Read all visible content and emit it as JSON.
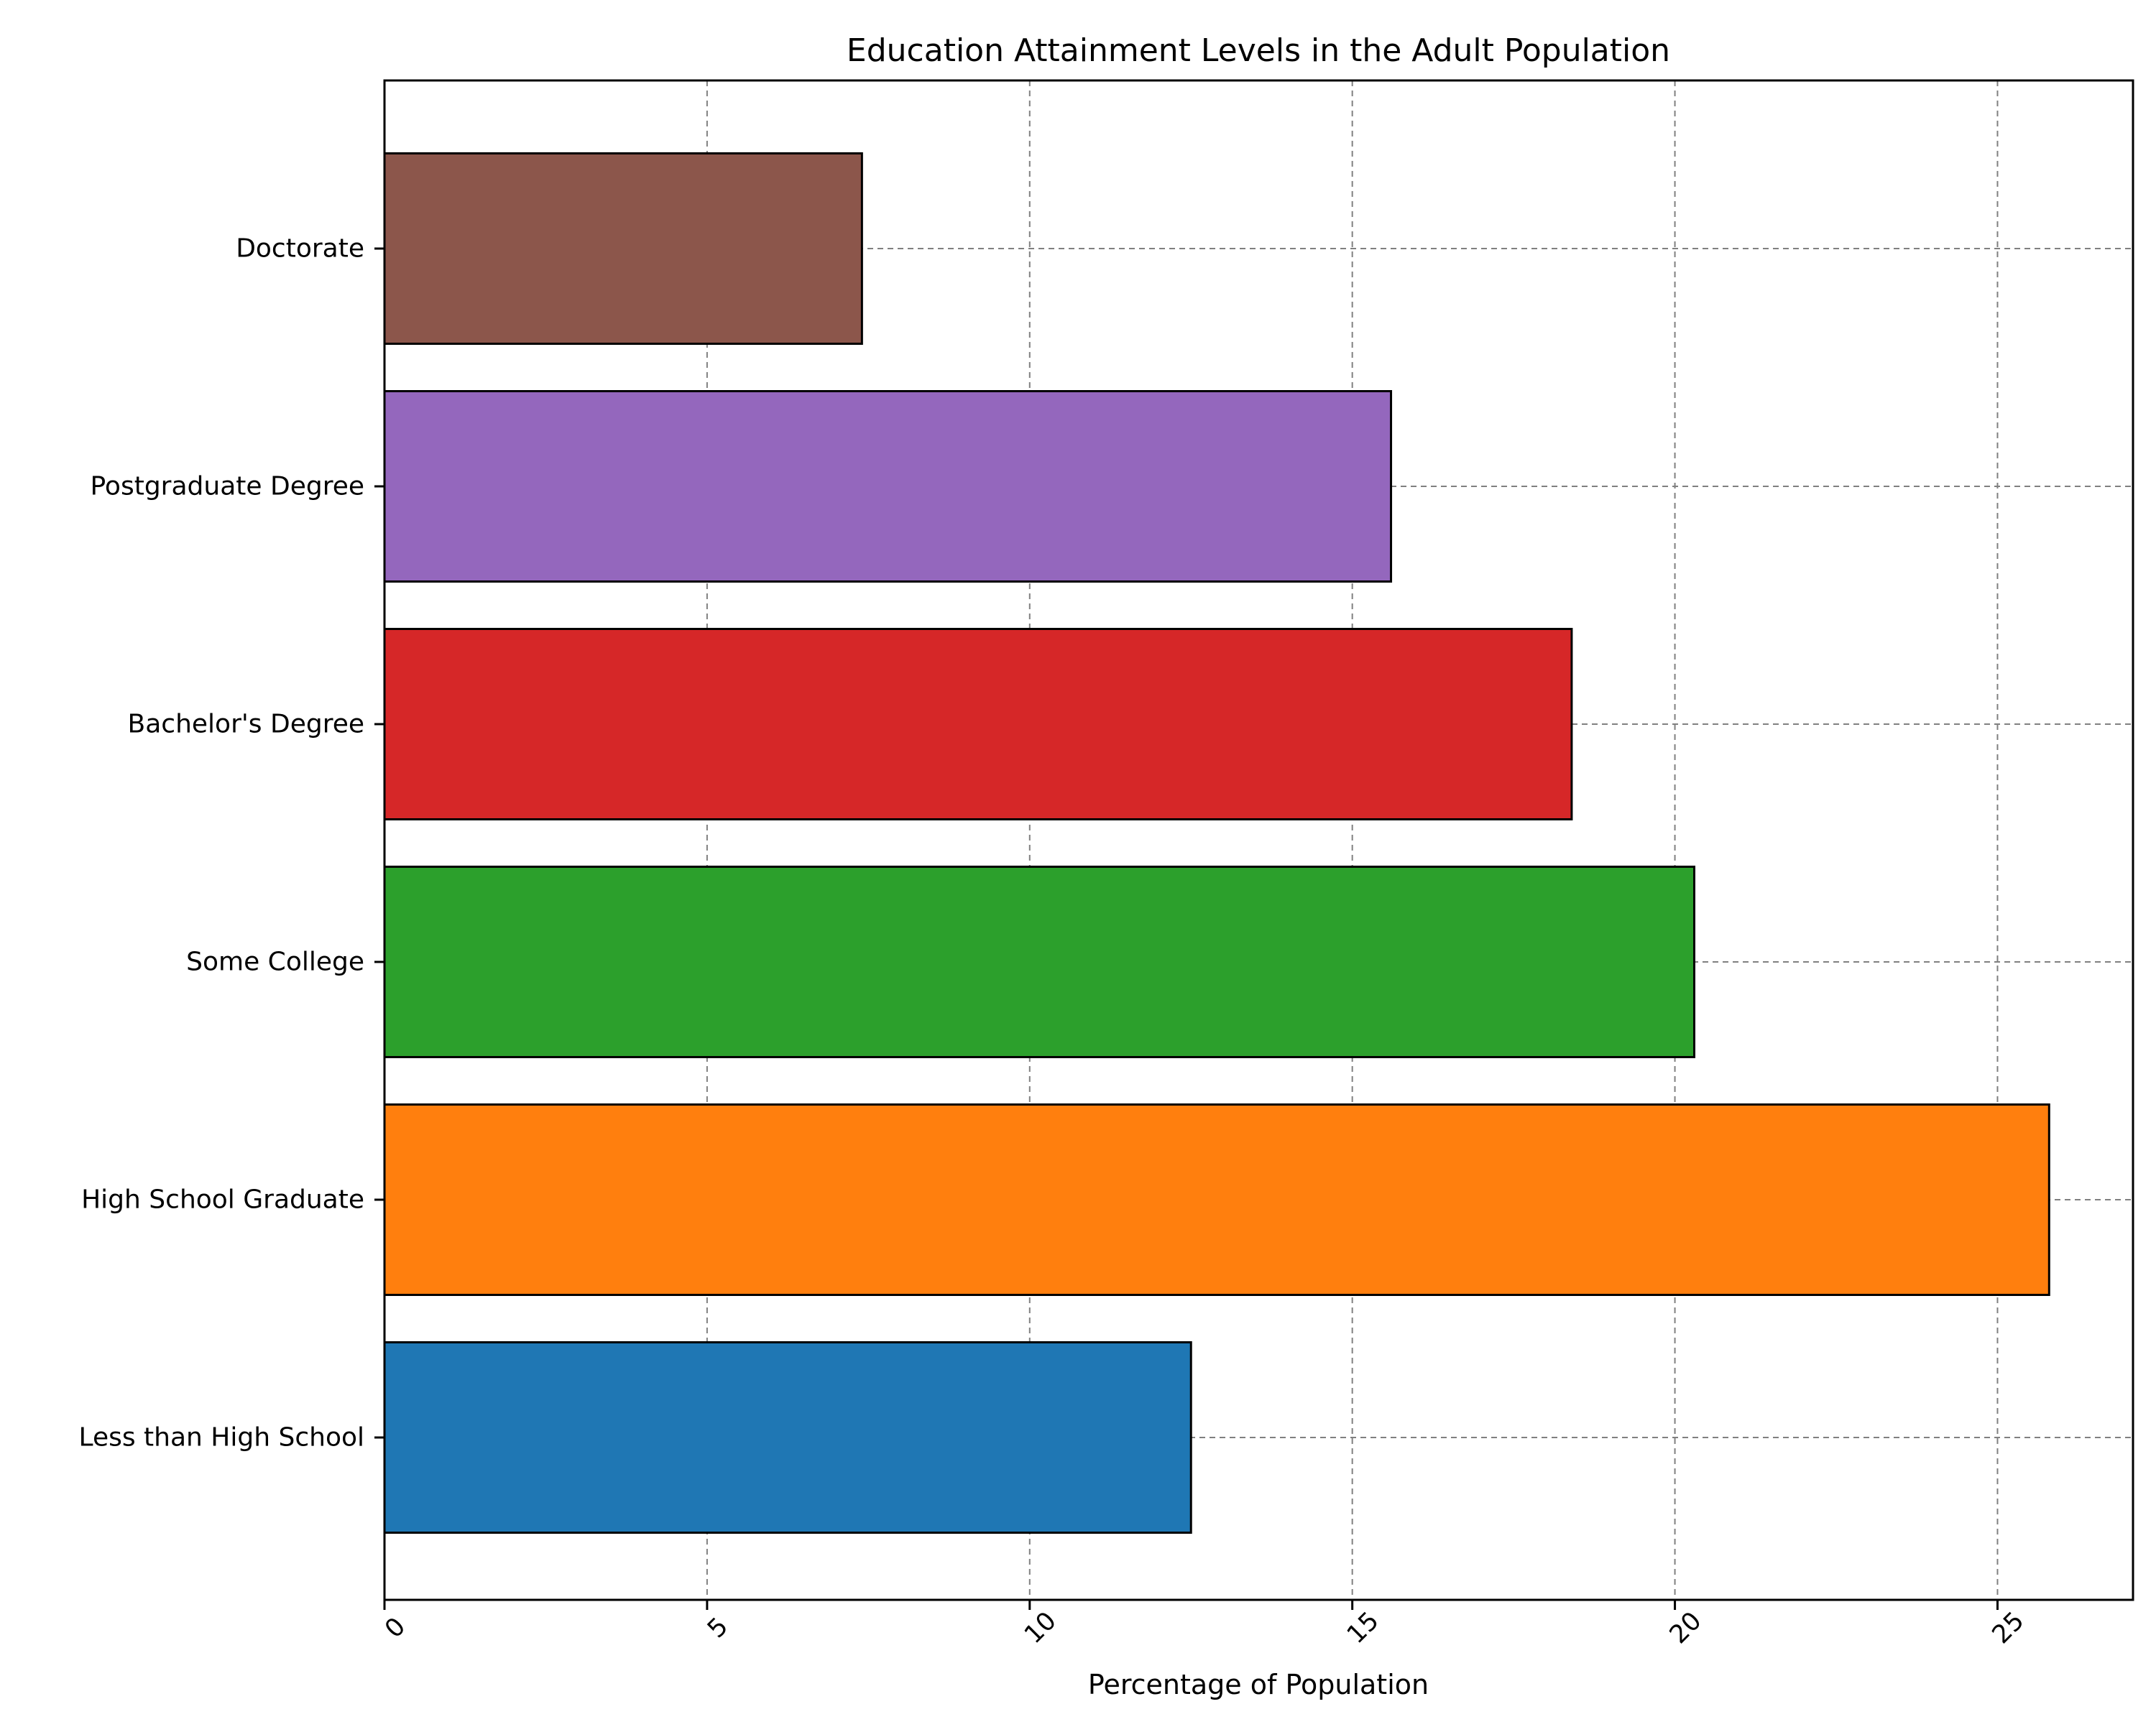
{
  "chart_data": {
    "type": "bar",
    "orientation": "horizontal",
    "title": "Education Attainment Levels in the Adult Population",
    "xlabel": "Percentage of Population",
    "ylabel": "",
    "categories": [
      "Less than High School",
      "High School Graduate",
      "Some College",
      "Bachelor's Degree",
      "Postgraduate Degree",
      "Doctorate"
    ],
    "values": [
      12.5,
      25.8,
      20.3,
      18.4,
      15.6,
      7.4
    ],
    "colors": [
      "#1f77b4",
      "#ff7f0e",
      "#2ca02c",
      "#d62728",
      "#9467bd",
      "#8c564b"
    ],
    "xlim": [
      0,
      27.1
    ],
    "xticks": [
      0,
      5,
      10,
      15,
      20,
      25
    ],
    "xtick_rotation": 45,
    "grid": true,
    "legend": false
  }
}
